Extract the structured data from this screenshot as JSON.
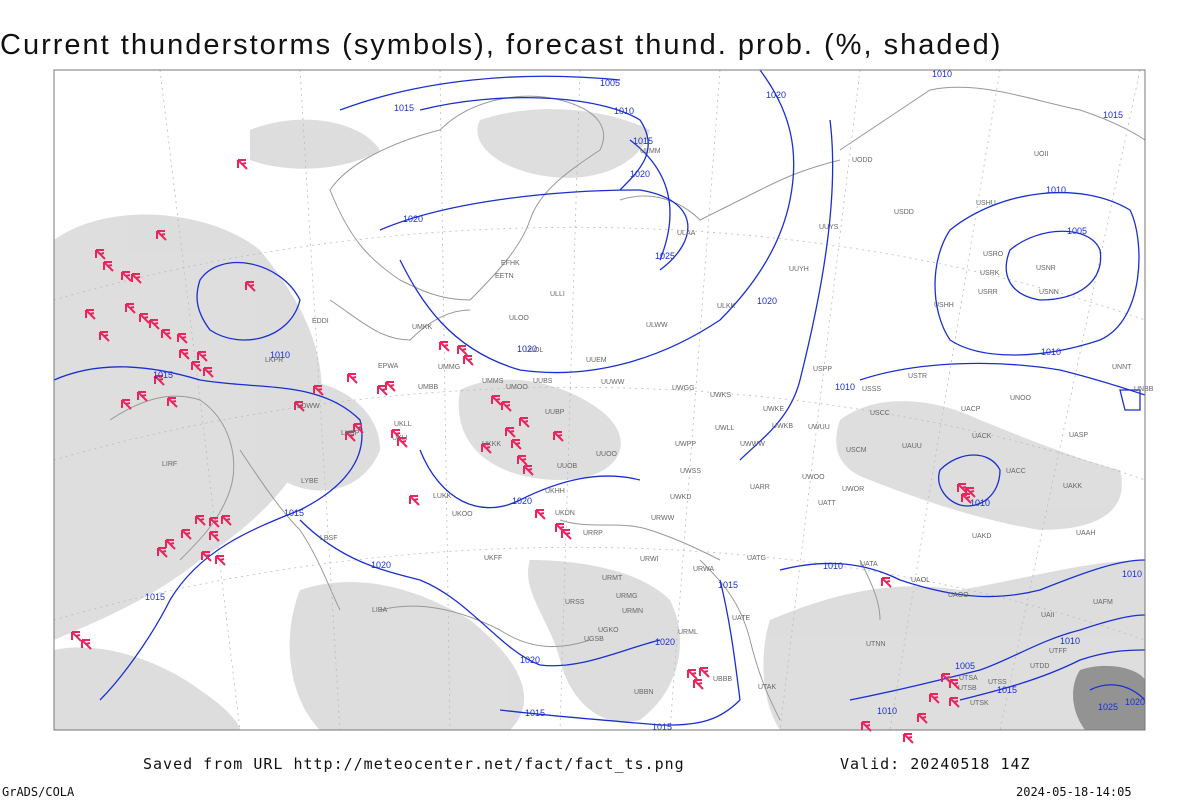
{
  "title": "Current thunderstorms (symbols), forecast thund. prob. (%, shaded)",
  "footer": {
    "source": "Saved from URL http://meteocenter.net/fact/fact_ts.png",
    "valid": "Valid: 20240518 14Z",
    "software": "GrADS/COLA",
    "timestamp": "2024-05-18-14:05"
  },
  "isobar_labels": [
    1005,
    1010,
    1015,
    1015,
    1020,
    1020,
    1025,
    1020,
    1010,
    1015,
    1010,
    1005,
    1010,
    1010,
    1015,
    1020,
    1020,
    1010,
    1015,
    1020,
    1020,
    1015,
    1010,
    1015,
    1020,
    1020,
    1015,
    1015,
    1010,
    1005,
    1015,
    1010,
    1010,
    1025,
    1020,
    1010
  ],
  "station_labels": [
    "ULMM",
    "ULOO",
    "ULOL",
    "UUEM",
    "UMMS",
    "UMOO",
    "UUBS",
    "UMMG",
    "UMKK",
    "EPWA",
    "UMBB",
    "UKLL",
    "UKLI",
    "UUBP",
    "UUOO",
    "UUOB",
    "UKKK",
    "UKHH",
    "UKFF",
    "UKOO",
    "LUKK",
    "UKDN",
    "URRP",
    "URWW",
    "URWI",
    "URWA",
    "UATG",
    "UATT",
    "UARR",
    "UWOO",
    "UWOR",
    "UWKD",
    "UWSS",
    "UWPP",
    "UWWW",
    "UWKE",
    "UWKB",
    "UWUU",
    "UWGG",
    "UWKS",
    "UWLL",
    "USSS",
    "USCC",
    "UAUU",
    "USCM",
    "USTR",
    "UNOO",
    "UACP",
    "UACK",
    "UASP",
    "UACC",
    "UAKK",
    "UAAH",
    "UAKD",
    "UATA",
    "UAOL",
    "UAOO",
    "USPP",
    "ULKK",
    "ULWW",
    "UUYH",
    "UUYS",
    "ULAA",
    "ULLI",
    "EFHK",
    "EETN",
    "USDD",
    "UODD",
    "USHH",
    "USRR",
    "USRK",
    "USRO",
    "USNR",
    "USNN",
    "USHU",
    "UOII",
    "UNNT",
    "UNBB",
    "LKPR",
    "EDDI",
    "LHBP",
    "LOWW",
    "LYBE",
    "LBSF",
    "LIRF",
    "LIBA",
    "UTAK",
    "UBBB",
    "UGSB",
    "UGKO",
    "URSS",
    "URMT",
    "URMG",
    "URMN",
    "URML",
    "UATE",
    "UTNN",
    "UTSS",
    "UTSA",
    "UTSB",
    "UTSK",
    "UAFM",
    "UAII",
    "UTFF",
    "UTDD",
    "UBBN",
    "UUWW"
  ]
}
